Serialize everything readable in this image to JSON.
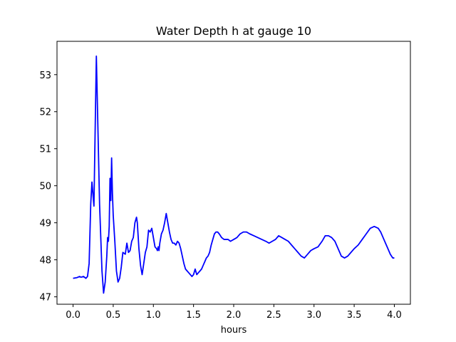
{
  "chart_data": {
    "type": "line",
    "title": "Water Depth h at gauge 10",
    "xlabel": "hours",
    "ylabel": "",
    "xlim": [
      -0.2,
      4.2
    ],
    "ylim": [
      46.8,
      53.9
    ],
    "xticks": [
      0.0,
      0.5,
      1.0,
      1.5,
      2.0,
      2.5,
      3.0,
      3.5,
      4.0
    ],
    "xtick_labels": [
      "0.0",
      "0.5",
      "1.0",
      "1.5",
      "2.0",
      "2.5",
      "3.0",
      "3.5",
      "4.0"
    ],
    "yticks": [
      47,
      48,
      49,
      50,
      51,
      52,
      53
    ],
    "ytick_labels": [
      "47",
      "48",
      "49",
      "50",
      "51",
      "52",
      "53"
    ],
    "grid": false,
    "series": [
      {
        "color": "#0000ff",
        "x": [
          0.0,
          0.05,
          0.08,
          0.1,
          0.13,
          0.16,
          0.18,
          0.2,
          0.21,
          0.22,
          0.235,
          0.25,
          0.26,
          0.275,
          0.29,
          0.31,
          0.33,
          0.36,
          0.38,
          0.4,
          0.42,
          0.43,
          0.44,
          0.45,
          0.46,
          0.47,
          0.48,
          0.49,
          0.5,
          0.52,
          0.54,
          0.56,
          0.58,
          0.6,
          0.62,
          0.65,
          0.67,
          0.69,
          0.71,
          0.73,
          0.75,
          0.77,
          0.79,
          0.8,
          0.82,
          0.84,
          0.86,
          0.88,
          0.9,
          0.92,
          0.94,
          0.96,
          0.98,
          1.0,
          1.02,
          1.04,
          1.05,
          1.06,
          1.07,
          1.08,
          1.1,
          1.12,
          1.14,
          1.16,
          1.18,
          1.2,
          1.22,
          1.24,
          1.26,
          1.28,
          1.3,
          1.32,
          1.34,
          1.36,
          1.38,
          1.4,
          1.42,
          1.44,
          1.46,
          1.48,
          1.5,
          1.52,
          1.54,
          1.56,
          1.58,
          1.6,
          1.62,
          1.64,
          1.66,
          1.68,
          1.7,
          1.72,
          1.74,
          1.76,
          1.78,
          1.8,
          1.82,
          1.85,
          1.88,
          1.9,
          1.93,
          1.96,
          2.0,
          2.04,
          2.08,
          2.12,
          2.16,
          2.2,
          2.25,
          2.3,
          2.35,
          2.4,
          2.44,
          2.48,
          2.52,
          2.56,
          2.6,
          2.64,
          2.68,
          2.72,
          2.76,
          2.8,
          2.84,
          2.88,
          2.92,
          2.96,
          3.0,
          3.05,
          3.1,
          3.14,
          3.18,
          3.22,
          3.26,
          3.3,
          3.34,
          3.38,
          3.42,
          3.46,
          3.5,
          3.55,
          3.6,
          3.65,
          3.7,
          3.75,
          3.8,
          3.83,
          3.86,
          3.89,
          3.92,
          3.95,
          3.98,
          4.0
        ],
        "y": [
          47.5,
          47.52,
          47.55,
          47.53,
          47.55,
          47.5,
          47.55,
          47.9,
          48.7,
          49.5,
          50.1,
          49.7,
          49.45,
          51.5,
          53.5,
          51.5,
          49.5,
          47.7,
          47.1,
          47.4,
          48.1,
          48.6,
          48.5,
          48.9,
          50.2,
          49.6,
          50.75,
          49.8,
          49.2,
          48.5,
          47.7,
          47.4,
          47.5,
          47.8,
          48.2,
          48.15,
          48.45,
          48.2,
          48.25,
          48.5,
          48.6,
          49.0,
          49.15,
          49.0,
          48.3,
          47.85,
          47.6,
          47.9,
          48.2,
          48.35,
          48.8,
          48.75,
          48.85,
          48.6,
          48.35,
          48.3,
          48.25,
          48.35,
          48.25,
          48.45,
          48.7,
          48.8,
          49.0,
          49.25,
          49.0,
          48.75,
          48.55,
          48.45,
          48.45,
          48.4,
          48.5,
          48.45,
          48.3,
          48.1,
          47.9,
          47.75,
          47.7,
          47.65,
          47.6,
          47.55,
          47.6,
          47.75,
          47.6,
          47.65,
          47.7,
          47.75,
          47.85,
          47.95,
          48.05,
          48.1,
          48.2,
          48.4,
          48.55,
          48.7,
          48.75,
          48.75,
          48.7,
          48.6,
          48.55,
          48.55,
          48.55,
          48.5,
          48.55,
          48.6,
          48.7,
          48.75,
          48.75,
          48.7,
          48.65,
          48.6,
          48.55,
          48.5,
          48.45,
          48.5,
          48.55,
          48.65,
          48.6,
          48.55,
          48.5,
          48.4,
          48.3,
          48.2,
          48.1,
          48.05,
          48.15,
          48.25,
          48.3,
          48.35,
          48.5,
          48.65,
          48.65,
          48.6,
          48.5,
          48.3,
          48.1,
          48.05,
          48.1,
          48.2,
          48.3,
          48.4,
          48.55,
          48.7,
          48.85,
          48.9,
          48.85,
          48.75,
          48.6,
          48.45,
          48.3,
          48.15,
          48.05,
          48.05
        ]
      }
    ]
  }
}
